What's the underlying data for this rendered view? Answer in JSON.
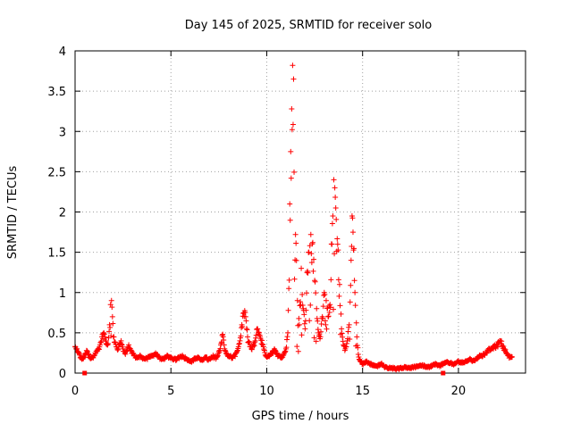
{
  "chart_data": {
    "type": "scatter",
    "title": "Day 145 of 2025, SRMTID for receiver solo",
    "xlabel": "GPS time / hours",
    "ylabel": "SRMTID / TECUs",
    "xlim": [
      0,
      23.5
    ],
    "ylim": [
      0,
      4
    ],
    "xticks": [
      0,
      5,
      10,
      15,
      20
    ],
    "xtick_labels": [
      "0",
      "5",
      "10",
      "15",
      "20"
    ],
    "yticks": [
      0,
      0.5,
      1,
      1.5,
      2,
      2.5,
      3,
      3.5,
      4
    ],
    "ytick_labels": [
      "0",
      "0.5",
      "1",
      "1.5",
      "2",
      "2.5",
      "3",
      "3.5",
      "4"
    ],
    "grid": true,
    "marker": "+",
    "series_color": "#ff0000",
    "baseline_markers_x": [
      0.5,
      19.2
    ],
    "series": [
      {
        "name": "SRMTID",
        "x": [
          0,
          0.1,
          0.2,
          0.3,
          0.4,
          0.5,
          0.6,
          0.7,
          0.8,
          0.9,
          1.0,
          1.1,
          1.2,
          1.3,
          1.4,
          1.5,
          1.6,
          1.7,
          1.8,
          1.85,
          1.9,
          1.95,
          2.0,
          2.1,
          2.2,
          2.3,
          2.4,
          2.5,
          2.6,
          2.7,
          2.8,
          2.9,
          3.0,
          3.2,
          3.4,
          3.6,
          3.8,
          4.0,
          4.2,
          4.4,
          4.6,
          4.8,
          5.0,
          5.2,
          5.4,
          5.6,
          5.8,
          6.0,
          6.2,
          6.4,
          6.6,
          6.8,
          7.0,
          7.2,
          7.4,
          7.6,
          7.7,
          7.8,
          8.0,
          8.2,
          8.4,
          8.6,
          8.7,
          8.8,
          8.9,
          9.0,
          9.2,
          9.4,
          9.5,
          9.6,
          9.8,
          10.0,
          10.2,
          10.4,
          10.6,
          10.8,
          11.0,
          11.1,
          11.15,
          11.2,
          11.25,
          11.3,
          11.35,
          11.4,
          11.5,
          11.6,
          11.7,
          11.8,
          11.9,
          12.0,
          12.1,
          12.2,
          12.3,
          12.4,
          12.5,
          12.6,
          12.7,
          12.8,
          12.9,
          13.0,
          13.1,
          13.2,
          13.3,
          13.4,
          13.45,
          13.5,
          13.55,
          13.6,
          13.7,
          13.8,
          13.9,
          14.0,
          14.1,
          14.2,
          14.3,
          14.4,
          14.45,
          14.5,
          14.6,
          14.7,
          14.8,
          14.9,
          15.0,
          15.2,
          15.4,
          15.6,
          15.8,
          16.0,
          16.2,
          16.4,
          16.6,
          16.8,
          17.0,
          17.2,
          17.4,
          17.6,
          17.8,
          18.0,
          18.2,
          18.4,
          18.6,
          18.8,
          19.0,
          19.2,
          19.4,
          19.6,
          19.8,
          20.0,
          20.2,
          20.4,
          20.6,
          20.8,
          21.0,
          21.2,
          21.4,
          21.6,
          21.8,
          22.0,
          22.2,
          22.4,
          22.6,
          22.8
        ],
        "y": [
          0.33,
          0.3,
          0.25,
          0.2,
          0.18,
          0.22,
          0.28,
          0.24,
          0.18,
          0.2,
          0.22,
          0.27,
          0.3,
          0.35,
          0.45,
          0.5,
          0.4,
          0.35,
          0.6,
          0.85,
          0.9,
          0.7,
          0.45,
          0.38,
          0.3,
          0.35,
          0.4,
          0.3,
          0.25,
          0.3,
          0.35,
          0.28,
          0.25,
          0.2,
          0.22,
          0.18,
          0.2,
          0.22,
          0.25,
          0.2,
          0.18,
          0.22,
          0.2,
          0.18,
          0.2,
          0.22,
          0.18,
          0.15,
          0.18,
          0.2,
          0.17,
          0.2,
          0.18,
          0.22,
          0.2,
          0.35,
          0.48,
          0.3,
          0.22,
          0.2,
          0.25,
          0.4,
          0.6,
          0.75,
          0.7,
          0.45,
          0.3,
          0.4,
          0.55,
          0.5,
          0.35,
          0.2,
          0.25,
          0.3,
          0.22,
          0.2,
          0.3,
          0.5,
          1.05,
          2.1,
          2.75,
          3.28,
          3.82,
          3.65,
          1.72,
          0.9,
          0.6,
          1.3,
          0.8,
          0.55,
          1.25,
          1.5,
          1.72,
          1.62,
          1.15,
          0.8,
          0.5,
          0.45,
          0.7,
          1.0,
          0.9,
          0.7,
          0.85,
          1.6,
          1.95,
          2.4,
          2.3,
          2.05,
          1.6,
          1.1,
          0.55,
          0.35,
          0.3,
          0.4,
          0.6,
          1.4,
          1.95,
          1.75,
          1.0,
          0.45,
          0.2,
          0.15,
          0.12,
          0.15,
          0.12,
          0.1,
          0.1,
          0.12,
          0.08,
          0.07,
          0.07,
          0.06,
          0.07,
          0.08,
          0.07,
          0.08,
          0.09,
          0.1,
          0.1,
          0.08,
          0.1,
          0.12,
          0.1,
          0.12,
          0.14,
          0.13,
          0.12,
          0.15,
          0.14,
          0.15,
          0.18,
          0.16,
          0.2,
          0.22,
          0.25,
          0.3,
          0.33,
          0.35,
          0.4,
          0.3,
          0.22,
          0.2
        ]
      }
    ]
  }
}
